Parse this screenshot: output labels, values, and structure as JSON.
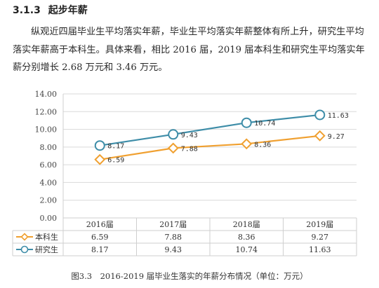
{
  "heading": {
    "number": "3.1.3",
    "title": "起步年薪"
  },
  "paragraph": "纵观近四届毕业生平均落实年薪，毕业生平均落实年薪整体有所上升，研究生平均落实年薪高于本科生。具体来看，相比 2016 届，2019 届本科生和研究生平均落实年薪分别增长 2.68 万元和 3.46 万元。",
  "caption": "图3.3　2016-2019 届毕业生落实的年薪分布情况（单位：万元）",
  "chart_data": {
    "type": "line",
    "categories": [
      "2016届",
      "2017届",
      "2018届",
      "2019届"
    ],
    "ylim": [
      0,
      14
    ],
    "yticks": [
      "0.00",
      "2.00",
      "4.00",
      "6.00",
      "8.00",
      "10.00",
      "12.00",
      "14.00"
    ],
    "grid": true,
    "legend": "data-table-left",
    "series": [
      {
        "name": "本科生",
        "values": [
          6.59,
          7.88,
          8.36,
          9.27
        ],
        "labels": [
          "6.59",
          "7.88",
          "8.36",
          "9.27"
        ],
        "color": "#F0A030",
        "marker": "diamond"
      },
      {
        "name": "研究生",
        "values": [
          8.17,
          9.43,
          10.74,
          11.63
        ],
        "labels": [
          "8.17",
          "9.43",
          "10.74",
          "11.63"
        ],
        "color": "#3E8DA8",
        "marker": "circle"
      }
    ]
  }
}
